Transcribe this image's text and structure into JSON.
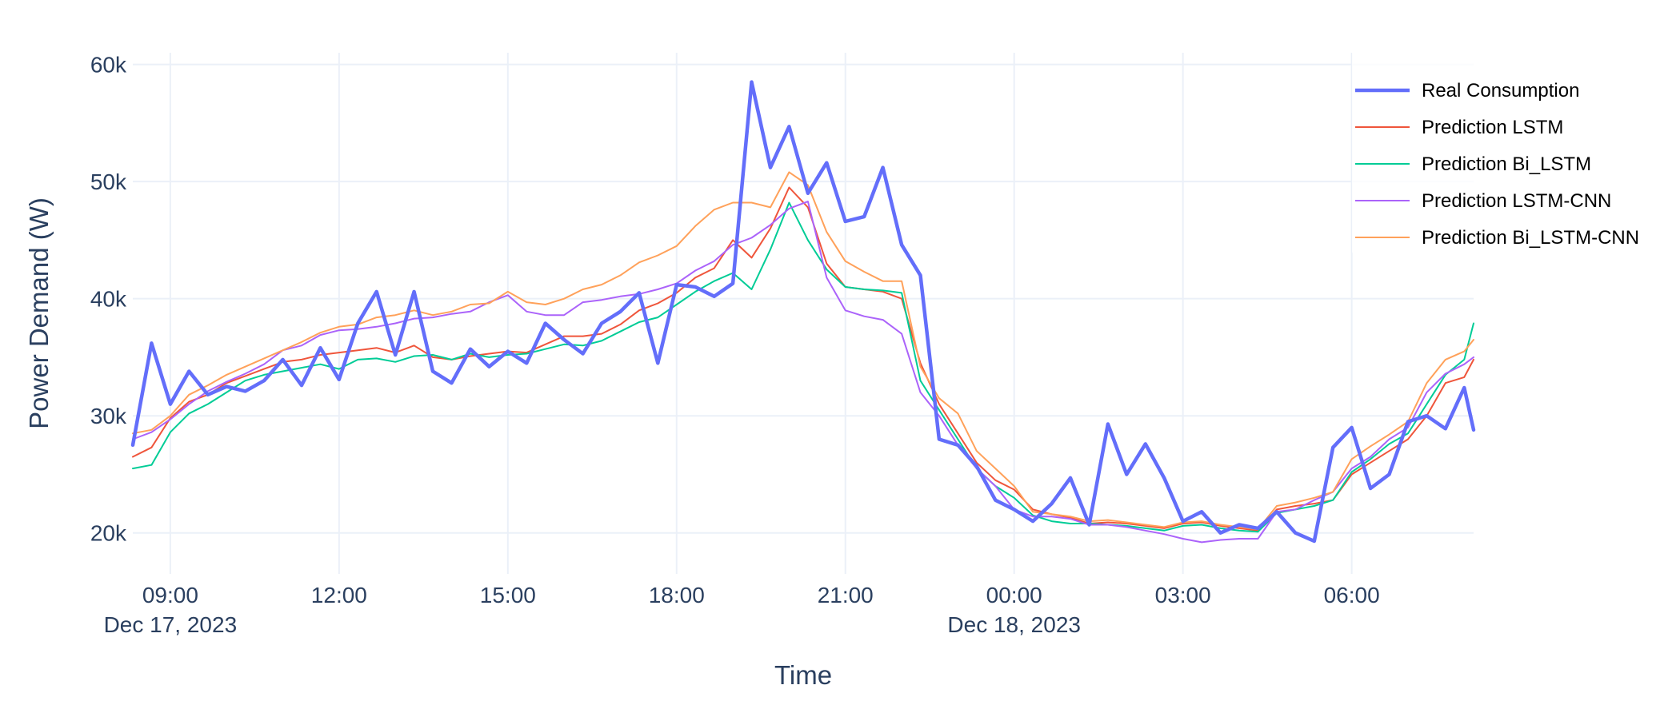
{
  "chart_data": {
    "type": "line",
    "title": "",
    "xlabel": "Time",
    "ylabel": "Power Demand (W)",
    "x_range": [
      "2023-12-17 08:20",
      "2023-12-18 08:10"
    ],
    "ylim": [
      16500,
      61000
    ],
    "y_ticks": [
      20000,
      30000,
      40000,
      50000,
      60000
    ],
    "y_tick_labels": [
      "20k",
      "30k",
      "40k",
      "50k",
      "60k"
    ],
    "x_ticks": [
      "2023-12-17 09:00",
      "2023-12-17 12:00",
      "2023-12-17 15:00",
      "2023-12-17 18:00",
      "2023-12-17 21:00",
      "2023-12-18 00:00",
      "2023-12-18 03:00",
      "2023-12-18 06:00"
    ],
    "x_tick_labels": [
      "09:00",
      "12:00",
      "15:00",
      "18:00",
      "21:00",
      "00:00",
      "03:00",
      "06:00"
    ],
    "x_date_labels": [
      {
        "at": "2023-12-17 09:00",
        "label": "Dec 17, 2023"
      },
      {
        "at": "2023-12-18 00:00",
        "label": "Dec 18, 2023"
      }
    ],
    "grid": true,
    "legend_position": "top-right",
    "x": [
      "2023-12-17 08:20",
      "2023-12-17 08:40",
      "2023-12-17 09:00",
      "2023-12-17 09:20",
      "2023-12-17 09:40",
      "2023-12-17 10:00",
      "2023-12-17 10:20",
      "2023-12-17 10:40",
      "2023-12-17 11:00",
      "2023-12-17 11:20",
      "2023-12-17 11:40",
      "2023-12-17 12:00",
      "2023-12-17 12:20",
      "2023-12-17 12:40",
      "2023-12-17 13:00",
      "2023-12-17 13:20",
      "2023-12-17 13:40",
      "2023-12-17 14:00",
      "2023-12-17 14:20",
      "2023-12-17 14:40",
      "2023-12-17 15:00",
      "2023-12-17 15:20",
      "2023-12-17 15:40",
      "2023-12-17 16:00",
      "2023-12-17 16:20",
      "2023-12-17 16:40",
      "2023-12-17 17:00",
      "2023-12-17 17:20",
      "2023-12-17 17:40",
      "2023-12-17 18:00",
      "2023-12-17 18:20",
      "2023-12-17 18:40",
      "2023-12-17 19:00",
      "2023-12-17 19:20",
      "2023-12-17 19:40",
      "2023-12-17 20:00",
      "2023-12-17 20:20",
      "2023-12-17 20:40",
      "2023-12-17 21:00",
      "2023-12-17 21:20",
      "2023-12-17 21:40",
      "2023-12-17 22:00",
      "2023-12-17 22:20",
      "2023-12-17 22:40",
      "2023-12-17 23:00",
      "2023-12-17 23:20",
      "2023-12-17 23:40",
      "2023-12-18 00:00",
      "2023-12-18 00:20",
      "2023-12-18 00:40",
      "2023-12-18 01:00",
      "2023-12-18 01:20",
      "2023-12-18 01:40",
      "2023-12-18 02:00",
      "2023-12-18 02:20",
      "2023-12-18 02:40",
      "2023-12-18 03:00",
      "2023-12-18 03:20",
      "2023-12-18 03:40",
      "2023-12-18 04:00",
      "2023-12-18 04:20",
      "2023-12-18 04:40",
      "2023-12-18 05:00",
      "2023-12-18 05:20",
      "2023-12-18 05:40",
      "2023-12-18 06:00",
      "2023-12-18 06:20",
      "2023-12-18 06:40",
      "2023-12-18 07:00",
      "2023-12-18 07:20",
      "2023-12-18 07:40",
      "2023-12-18 08:00",
      "2023-12-18 08:10"
    ],
    "series": [
      {
        "name": "Real Consumption",
        "color": "#636efa",
        "width": "thick",
        "values": [
          27500,
          36200,
          31000,
          33800,
          31800,
          32500,
          32100,
          33000,
          34800,
          32600,
          35800,
          33100,
          37900,
          40600,
          35200,
          40600,
          33800,
          32800,
          35700,
          34200,
          35500,
          34500,
          37900,
          36500,
          35300,
          37900,
          38900,
          40500,
          34500,
          41200,
          41000,
          40200,
          41300,
          58500,
          51200,
          54700,
          49000,
          51600,
          46600,
          47000,
          51200,
          44600,
          42000,
          28000,
          27500,
          25700,
          22800,
          22000,
          21000,
          22500,
          24700,
          20700,
          29300,
          25000,
          27600,
          24700,
          21000,
          21800,
          20000,
          20700,
          20400,
          21800,
          20000,
          19300,
          27300,
          29000,
          23800,
          25000,
          29500,
          30000,
          28900,
          32400,
          28800
        ]
      },
      {
        "name": "Prediction LSTM",
        "color": "#ef553b",
        "width": "thin",
        "values": [
          26500,
          27300,
          29800,
          31200,
          31800,
          32800,
          33400,
          34000,
          34600,
          34800,
          35200,
          35400,
          35600,
          35800,
          35400,
          36000,
          35000,
          34800,
          35100,
          35300,
          35500,
          35400,
          36100,
          36800,
          36800,
          37000,
          37800,
          39000,
          39600,
          40500,
          41800,
          42600,
          45000,
          43500,
          46000,
          49500,
          47800,
          43000,
          41000,
          40800,
          40600,
          40000,
          34500,
          31000,
          28500,
          26000,
          24500,
          23700,
          22000,
          21600,
          21300,
          20800,
          20900,
          20800,
          20600,
          20400,
          20800,
          20900,
          20600,
          20400,
          20200,
          22000,
          22300,
          22500,
          22800,
          25000,
          26000,
          27000,
          28000,
          30000,
          32800,
          33300,
          34800
        ]
      },
      {
        "name": "Prediction Bi_LSTM",
        "color": "#00cc96",
        "width": "thin",
        "values": [
          25500,
          25800,
          28600,
          30200,
          31000,
          32000,
          33000,
          33500,
          33800,
          34100,
          34400,
          34000,
          34800,
          34900,
          34600,
          35100,
          35200,
          34800,
          35300,
          35000,
          35200,
          35300,
          35700,
          36100,
          36000,
          36400,
          37200,
          38000,
          38400,
          39500,
          40600,
          41500,
          42200,
          40800,
          44200,
          48200,
          45000,
          42500,
          41000,
          40800,
          40700,
          40500,
          33000,
          30500,
          28000,
          25500,
          24000,
          23000,
          21500,
          21000,
          20800,
          20800,
          20700,
          20600,
          20400,
          20200,
          20600,
          20700,
          20400,
          20200,
          20100,
          21700,
          22000,
          22300,
          22800,
          25200,
          26300,
          27600,
          28500,
          31000,
          33500,
          34800,
          37900
        ]
      },
      {
        "name": "Prediction LSTM-CNN",
        "color": "#ab63fa",
        "width": "thin",
        "values": [
          28000,
          28600,
          29700,
          31000,
          32100,
          32900,
          33600,
          34400,
          35600,
          36000,
          36900,
          37300,
          37400,
          37600,
          37900,
          38300,
          38400,
          38700,
          38900,
          39700,
          40300,
          38900,
          38600,
          38600,
          39700,
          39900,
          40200,
          40400,
          40800,
          41300,
          42400,
          43200,
          44600,
          45200,
          46300,
          47700,
          48300,
          41800,
          39000,
          38500,
          38200,
          37000,
          32000,
          30000,
          27500,
          25500,
          24000,
          22000,
          21400,
          21400,
          21200,
          20700,
          20700,
          20500,
          20200,
          19900,
          19500,
          19200,
          19400,
          19500,
          19500,
          21800,
          22000,
          22800,
          23500,
          25500,
          26500,
          28000,
          29000,
          32000,
          33600,
          34400,
          35000
        ]
      },
      {
        "name": "Prediction Bi_LSTM-CNN",
        "color": "#ffa15a",
        "width": "thin",
        "values": [
          28500,
          28800,
          30000,
          31800,
          32600,
          33500,
          34200,
          34900,
          35600,
          36300,
          37100,
          37600,
          37800,
          38400,
          38600,
          39000,
          38600,
          38900,
          39500,
          39600,
          40600,
          39700,
          39500,
          40000,
          40800,
          41200,
          42000,
          43100,
          43700,
          44500,
          46200,
          47600,
          48200,
          48200,
          47800,
          50800,
          49700,
          45700,
          43200,
          42300,
          41500,
          41500,
          34200,
          31500,
          30200,
          27000,
          25500,
          24000,
          21800,
          21600,
          21400,
          21000,
          21100,
          20900,
          20700,
          20500,
          20900,
          21000,
          20700,
          20500,
          20300,
          22300,
          22600,
          23000,
          23500,
          26300,
          27400,
          28400,
          29500,
          32800,
          34800,
          35500,
          36500
        ]
      }
    ]
  }
}
